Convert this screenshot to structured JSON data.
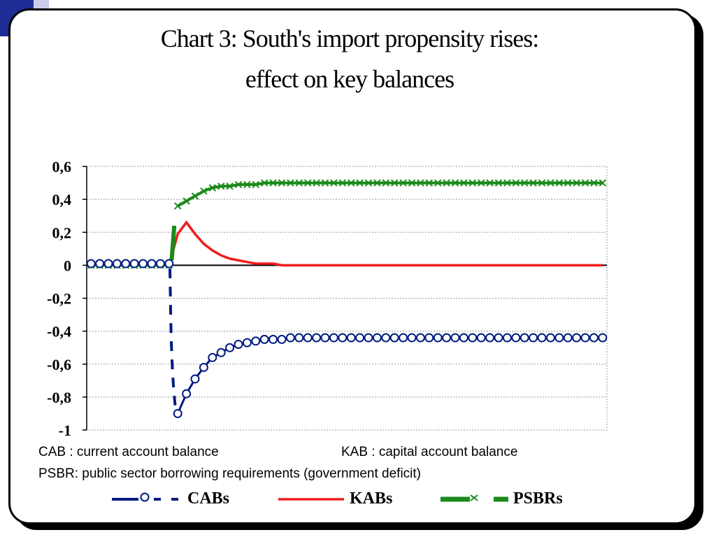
{
  "slide": {
    "title_line1": "Chart 3: South's import propensity rises:",
    "title_line2": "effect on key balances",
    "notes": {
      "cab": "CAB : current account balance",
      "kab": "KAB : capital account balance",
      "psbr": "PSBR: public sector borrowing requirements  (government deficit)"
    }
  },
  "colors": {
    "cab": "#001a80",
    "kab": "#ee1c1c",
    "psbr": "#1a8a1a",
    "corner_dark": "#1f2c96",
    "corner_light": "#c9cdea"
  },
  "chart_data": {
    "type": "line",
    "title": "",
    "xlabel": "",
    "ylabel": "",
    "ylim": [
      -1,
      0.6
    ],
    "yticks": [
      0.6,
      0.4,
      0.2,
      0,
      -0.2,
      -0.4,
      -0.6,
      -0.8,
      -1
    ],
    "ytick_labels": [
      "0,6",
      "0,4",
      "0,2",
      "0",
      "-0,2",
      "-0,4",
      "-0,6",
      "-0,8",
      "-1"
    ],
    "x": [
      1,
      2,
      3,
      4,
      5,
      6,
      7,
      8,
      9,
      10,
      11,
      12,
      13,
      14,
      15,
      16,
      17,
      18,
      19,
      20,
      21,
      22,
      23,
      24,
      25,
      26,
      27,
      28,
      29,
      30,
      31,
      32,
      33,
      34,
      35,
      36,
      37,
      38,
      39,
      40,
      41,
      42,
      43,
      44,
      45,
      46,
      47,
      48,
      49,
      50,
      51,
      52,
      53,
      54,
      55,
      56,
      57,
      58,
      59,
      60
    ],
    "xlim": [
      0.5,
      60.5
    ],
    "grid": true,
    "legend_position": "bottom",
    "series": [
      {
        "name": "CABs",
        "color_key": "cab",
        "marker": "circle",
        "values": [
          0.01,
          0.01,
          0.01,
          0.01,
          0.01,
          0.01,
          0.01,
          0.01,
          0.01,
          0.01,
          -0.9,
          -0.78,
          -0.69,
          -0.62,
          -0.56,
          -0.53,
          -0.5,
          -0.48,
          -0.47,
          -0.46,
          -0.45,
          -0.45,
          -0.45,
          -0.44,
          -0.44,
          -0.44,
          -0.44,
          -0.44,
          -0.44,
          -0.44,
          -0.44,
          -0.44,
          -0.44,
          -0.44,
          -0.44,
          -0.44,
          -0.44,
          -0.44,
          -0.44,
          -0.44,
          -0.44,
          -0.44,
          -0.44,
          -0.44,
          -0.44,
          -0.44,
          -0.44,
          -0.44,
          -0.44,
          -0.44,
          -0.44,
          -0.44,
          -0.44,
          -0.44,
          -0.44,
          -0.44,
          -0.44,
          -0.44,
          -0.44,
          -0.44
        ]
      },
      {
        "name": "KABs",
        "color_key": "kab",
        "marker": "none",
        "values": [
          0,
          0,
          0,
          0,
          0,
          0,
          0,
          0,
          0,
          0,
          0.19,
          0.26,
          0.19,
          0.13,
          0.09,
          0.06,
          0.04,
          0.03,
          0.02,
          0.01,
          0.01,
          0.01,
          0,
          0,
          0,
          0,
          0,
          0,
          0,
          0,
          0,
          0,
          0,
          0,
          0,
          0,
          0,
          0,
          0,
          0,
          0,
          0,
          0,
          0,
          0,
          0,
          0,
          0,
          0,
          0,
          0,
          0,
          0,
          0,
          0,
          0,
          0,
          0,
          0,
          0
        ]
      },
      {
        "name": "PSBRs",
        "color_key": "psbr",
        "marker": "x",
        "values": [
          0,
          0,
          0,
          0,
          0,
          0,
          0,
          0,
          0,
          0,
          0.36,
          0.39,
          0.42,
          0.45,
          0.47,
          0.48,
          0.48,
          0.49,
          0.49,
          0.49,
          0.5,
          0.5,
          0.5,
          0.5,
          0.5,
          0.5,
          0.5,
          0.5,
          0.5,
          0.5,
          0.5,
          0.5,
          0.5,
          0.5,
          0.5,
          0.5,
          0.5,
          0.5,
          0.5,
          0.5,
          0.5,
          0.5,
          0.5,
          0.5,
          0.5,
          0.5,
          0.5,
          0.5,
          0.5,
          0.5,
          0.5,
          0.5,
          0.5,
          0.5,
          0.5,
          0.5,
          0.5,
          0.5,
          0.5,
          0.5
        ]
      }
    ]
  }
}
